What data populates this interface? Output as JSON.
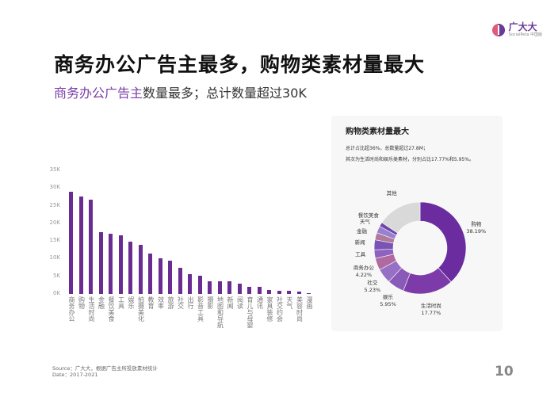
{
  "logo": {
    "name": "广大大",
    "tagline": "SocialPeta 中国版"
  },
  "title": "商务办公广告主最多，购物类素材量最大",
  "subtitle": {
    "highlight": "商务办公广告主",
    "rest": "数量最多；总计数量超过30K"
  },
  "colors": {
    "accent": "#6a2c91",
    "bar": "#6a2c91"
  },
  "chart_data": [
    {
      "type": "bar",
      "ylim": [
        0,
        35000
      ],
      "yticks": [
        "0K",
        "5K",
        "10K",
        "15K",
        "20K",
        "25K",
        "30K",
        "35K"
      ],
      "categories": [
        "商务办公",
        "购物",
        "生活时尚",
        "金融",
        "餐饮美食",
        "工具",
        "娱乐",
        "拍摄美化",
        "教育",
        "效率",
        "旅游",
        "社交",
        "出行",
        "影音工具",
        "摄影",
        "地图和导航",
        "新闻",
        "阅读",
        "育儿与母婴",
        "通讯",
        "家具装修",
        "社交约会",
        "天气",
        "美容时尚",
        "漫画"
      ],
      "values": [
        29000,
        27500,
        26800,
        17500,
        17000,
        16500,
        14700,
        14000,
        11500,
        10000,
        9500,
        7500,
        5500,
        5200,
        3700,
        3700,
        3500,
        3000,
        2000,
        2000,
        1200,
        1000,
        800,
        600,
        200
      ]
    },
    {
      "type": "pie",
      "title": "购物类素材量最大",
      "notes": [
        "总计占比超36%，总数量超过27.8M；",
        "其次为生活时尚和娱乐类素材，分别占比17.77%和5.95%。"
      ],
      "slices": [
        {
          "label": "购物",
          "value": 38.19,
          "pct": "38.19%",
          "color": "#6a2c9e"
        },
        {
          "label": "生活时尚",
          "value": 17.77,
          "pct": "17.77%",
          "color": "#7c3ba8"
        },
        {
          "label": "娱乐",
          "value": 5.95,
          "pct": "5.95%",
          "color": "#8a5ab8"
        },
        {
          "label": "社交",
          "value": 5.23,
          "pct": "5.23%",
          "color": "#9670c4"
        },
        {
          "label": "商务办公",
          "value": 4.22,
          "pct": "4.22%",
          "color": "#b06aa0"
        },
        {
          "label": "工具",
          "value": 3.0,
          "pct": "",
          "color": "#8e62c0"
        },
        {
          "label": "新闻",
          "value": 3.5,
          "pct": "",
          "color": "#7a54b4"
        },
        {
          "label": "金融",
          "value": 2.5,
          "pct": "",
          "color": "#b07a9c"
        },
        {
          "label": "天气",
          "value": 2.5,
          "pct": "",
          "color": "#9a80d0"
        },
        {
          "label": "餐饮美食",
          "value": 1.5,
          "pct": "",
          "color": "#6e48aa"
        },
        {
          "label": "其他",
          "value": 15.64,
          "pct": "",
          "color": "#d9d9d9"
        }
      ]
    }
  ],
  "footer": {
    "source": "Source：广大大，根据广告主所投放素材统计",
    "date": "Date：2017-2021"
  },
  "page_number": "10"
}
